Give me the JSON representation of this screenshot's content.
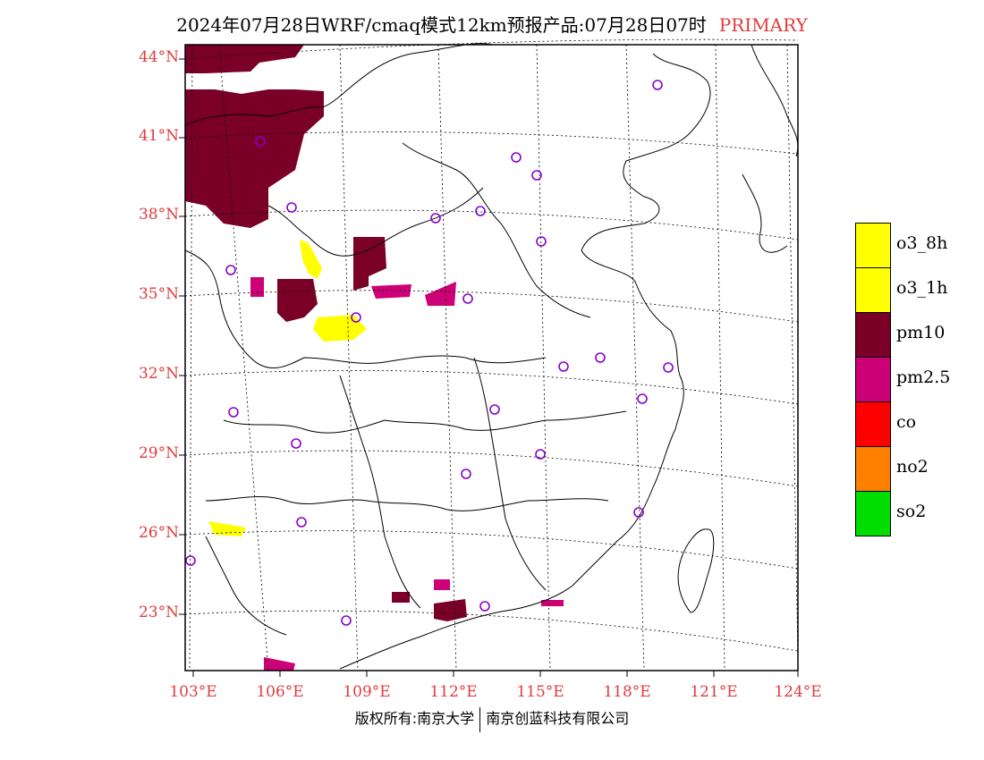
{
  "title": {
    "text": "2024年07月28日WRF/cmaq模式12km预报产品:07月28日07时",
    "tag": "PRIMARY"
  },
  "axes": {
    "lat_labels": [
      "44°N",
      "41°N",
      "38°N",
      "35°N",
      "32°N",
      "29°N",
      "26°N",
      "23°N"
    ],
    "lon_labels": [
      "103°E",
      "106°E",
      "109°E",
      "112°E",
      "115°E",
      "118°E",
      "121°E",
      "124°E"
    ]
  },
  "legend": [
    {
      "label": "o3_8h",
      "color": "#ffff00"
    },
    {
      "label": "o3_1h",
      "color": "#ffff00"
    },
    {
      "label": "pm10",
      "color": "#7a0028"
    },
    {
      "label": "pm2.5",
      "color": "#cc0077"
    },
    {
      "label": "co",
      "color": "#ff0000"
    },
    {
      "label": "no2",
      "color": "#ff7f00"
    },
    {
      "label": "so2",
      "color": "#00dd00"
    }
  ],
  "footer": {
    "left": "版权所有:南京大学",
    "right": "南京创蓝科技有限公司"
  },
  "colors": {
    "axis_label": "#e03c3c",
    "station_marker": "#8800cc"
  }
}
